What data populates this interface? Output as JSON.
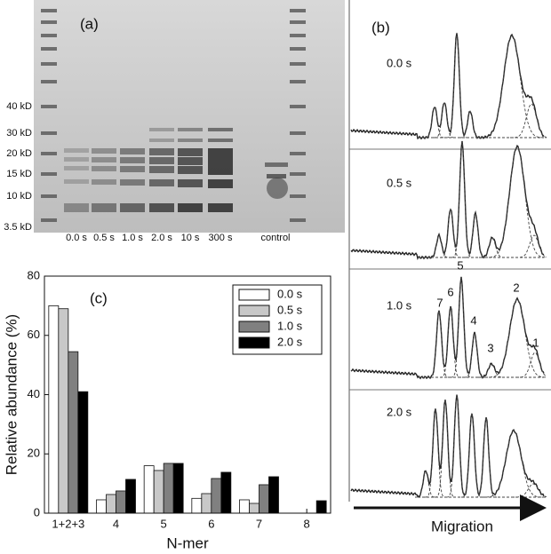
{
  "gel": {
    "label": "(a)",
    "markers": [
      "40 kD",
      "30 kD",
      "20 kD",
      "15 kD",
      "10 kD",
      "3.5 kD"
    ],
    "lanes": [
      "0.0 s",
      "0.5 s",
      "1.0 s",
      "2.0 s",
      "10 s",
      "300 s",
      "control"
    ]
  },
  "traces": {
    "label": "(b)",
    "panels": [
      "0.0 s",
      "0.5 s",
      "1.0 s",
      "2.0 s"
    ],
    "peaks": [
      "7",
      "6",
      "5",
      "4",
      "3",
      "2",
      "1"
    ],
    "axis_label": "Migration"
  },
  "chart_data": {
    "type": "bar",
    "panel_label": "(c)",
    "x_label": "N-mer",
    "y_label": "Relative abundance (%)",
    "categories": [
      "1+2+3",
      "4",
      "5",
      "6",
      "7",
      "8"
    ],
    "series": [
      {
        "name": "0.0 s",
        "color": "#ffffff",
        "values": [
          70,
          4.5,
          16,
          5,
          4.5,
          0
        ]
      },
      {
        "name": "0.5 s",
        "color": "#c8c8c8",
        "values": [
          69,
          6.3,
          14.4,
          6.6,
          3.3,
          0
        ]
      },
      {
        "name": "1.0 s",
        "color": "#808080",
        "values": [
          54.5,
          7.5,
          16.8,
          11.7,
          9.6,
          0
        ]
      },
      {
        "name": "2.0 s",
        "color": "#000000",
        "values": [
          41,
          11.4,
          16.8,
          13.8,
          12.3,
          4.2
        ]
      }
    ],
    "ylim": [
      0,
      80
    ],
    "yticks": [
      0,
      20,
      40,
      60,
      80
    ],
    "legend": "upper right"
  }
}
